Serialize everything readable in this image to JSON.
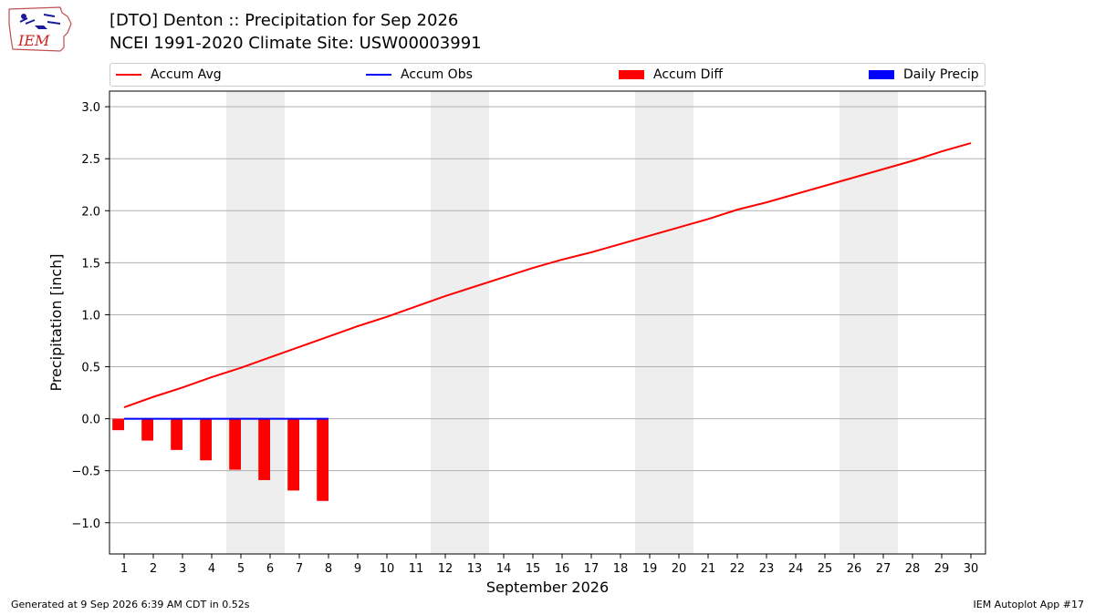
{
  "header": {
    "title_line1": "[DTO] Denton :: Precipitation for Sep 2026",
    "title_line2": "NCEI 1991-2020 Climate Site: USW00003991",
    "logo_text": "IEM"
  },
  "legend": {
    "items": [
      {
        "label": "Accum Avg",
        "kind": "line",
        "color": "#ff0000"
      },
      {
        "label": "Accum Obs",
        "kind": "line",
        "color": "#0000ff"
      },
      {
        "label": "Accum Diff",
        "kind": "patch",
        "color": "#ff0000"
      },
      {
        "label": "Daily Precip",
        "kind": "patch",
        "color": "#0000ff"
      }
    ]
  },
  "footer": {
    "generated": "Generated at 9 Sep 2026 6:39 AM CDT in 0.52s",
    "app": "IEM Autoplot App #17"
  },
  "chart_data": {
    "type": "line",
    "xlabel": "September 2026",
    "ylabel": "Precipitation [inch]",
    "xlim": [
      0.5,
      30.5
    ],
    "ylim": [
      -1.3,
      3.15
    ],
    "x_ticks": [
      1,
      2,
      3,
      4,
      5,
      6,
      7,
      8,
      9,
      10,
      11,
      12,
      13,
      14,
      15,
      16,
      17,
      18,
      19,
      20,
      21,
      22,
      23,
      24,
      25,
      26,
      27,
      28,
      29,
      30
    ],
    "y_ticks": [
      3.0,
      2.5,
      2.0,
      1.5,
      1.0,
      0.5,
      0.0,
      -0.5,
      -1.0
    ],
    "y_tick_labels": [
      "3.0",
      "2.5",
      "2.0",
      "1.5",
      "1.0",
      "0.5",
      "0.0",
      "−0.5",
      "−1.0"
    ],
    "grid": "horizontal",
    "shaded_weekends": [
      [
        5,
        6
      ],
      [
        12,
        13
      ],
      [
        19,
        20
      ],
      [
        26,
        27
      ]
    ],
    "shade_color": "#eeeeee",
    "series": [
      {
        "name": "Accum Avg",
        "kind": "line",
        "color": "#ff0000",
        "x": [
          1,
          2,
          3,
          4,
          5,
          6,
          7,
          8,
          9,
          10,
          11,
          12,
          13,
          14,
          15,
          16,
          17,
          18,
          19,
          20,
          21,
          22,
          23,
          24,
          25,
          26,
          27,
          28,
          29,
          30
        ],
        "values": [
          0.11,
          0.21,
          0.3,
          0.4,
          0.49,
          0.59,
          0.69,
          0.79,
          0.89,
          0.98,
          1.08,
          1.18,
          1.27,
          1.36,
          1.45,
          1.53,
          1.6,
          1.68,
          1.76,
          1.84,
          1.92,
          2.01,
          2.08,
          2.16,
          2.24,
          2.32,
          2.4,
          2.48,
          2.57,
          2.65
        ]
      },
      {
        "name": "Accum Obs",
        "kind": "line",
        "color": "#0000ff",
        "x": [
          1,
          2,
          3,
          4,
          5,
          6,
          7,
          8
        ],
        "values": [
          0.0,
          0.0,
          0.0,
          0.0,
          0.0,
          0.0,
          0.0,
          0.0
        ]
      },
      {
        "name": "Accum Diff",
        "kind": "bar",
        "color": "#ff0000",
        "x": [
          1,
          2,
          3,
          4,
          5,
          6,
          7,
          8
        ],
        "values": [
          -0.11,
          -0.21,
          -0.3,
          -0.4,
          -0.49,
          -0.59,
          -0.69,
          -0.79
        ]
      },
      {
        "name": "Daily Precip",
        "kind": "bar",
        "color": "#0000ff",
        "x": [
          1,
          2,
          3,
          4,
          5,
          6,
          7,
          8
        ],
        "values": [
          0.0,
          0.0,
          0.0,
          0.0,
          0.0,
          0.0,
          0.0,
          0.0
        ]
      }
    ]
  }
}
